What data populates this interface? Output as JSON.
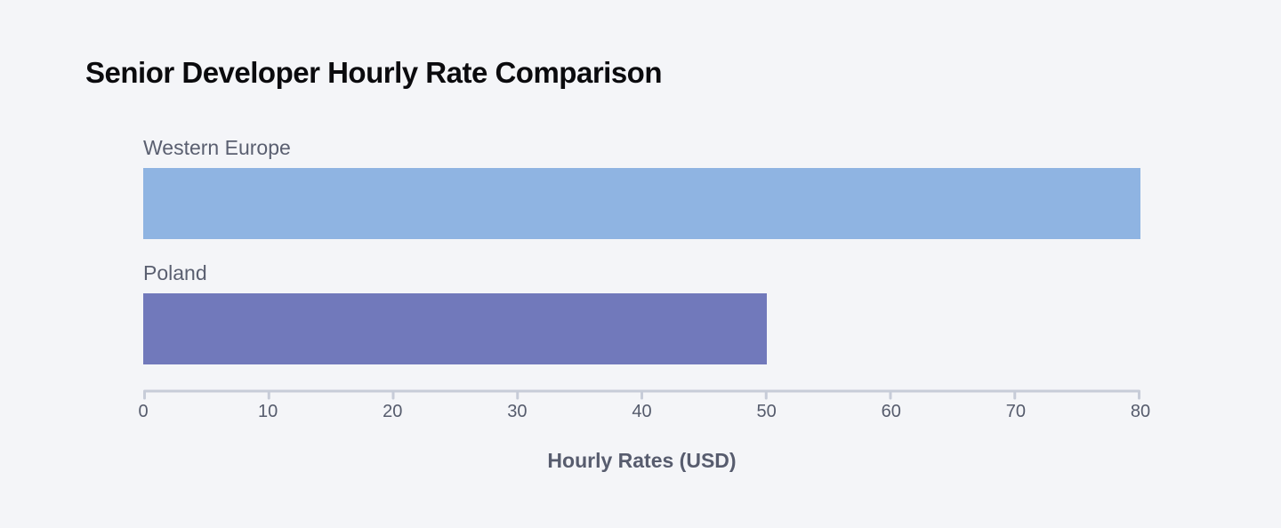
{
  "page": {
    "background_color": "#f4f5f8"
  },
  "chart_data": {
    "type": "bar",
    "orientation": "horizontal",
    "title": "Senior Developer Hourly Rate Comparison",
    "categories": [
      "Western Europe",
      "Poland"
    ],
    "values": [
      80,
      50
    ],
    "xlabel": "Hourly Rates (USD)",
    "ylabel": "",
    "xlim": [
      0,
      80
    ],
    "xticks": [
      0,
      10,
      20,
      30,
      40,
      50,
      60,
      70,
      80
    ],
    "grid": false,
    "legend": false,
    "bar_colors": [
      "#8fb4e2",
      "#7179bb"
    ],
    "axis_color": "#c7ccd8",
    "category_label_color": "#5a5f70",
    "tick_label_color": "#555b6c",
    "axis_title_color": "#575c6e",
    "title_color": "#0b0b0e"
  }
}
